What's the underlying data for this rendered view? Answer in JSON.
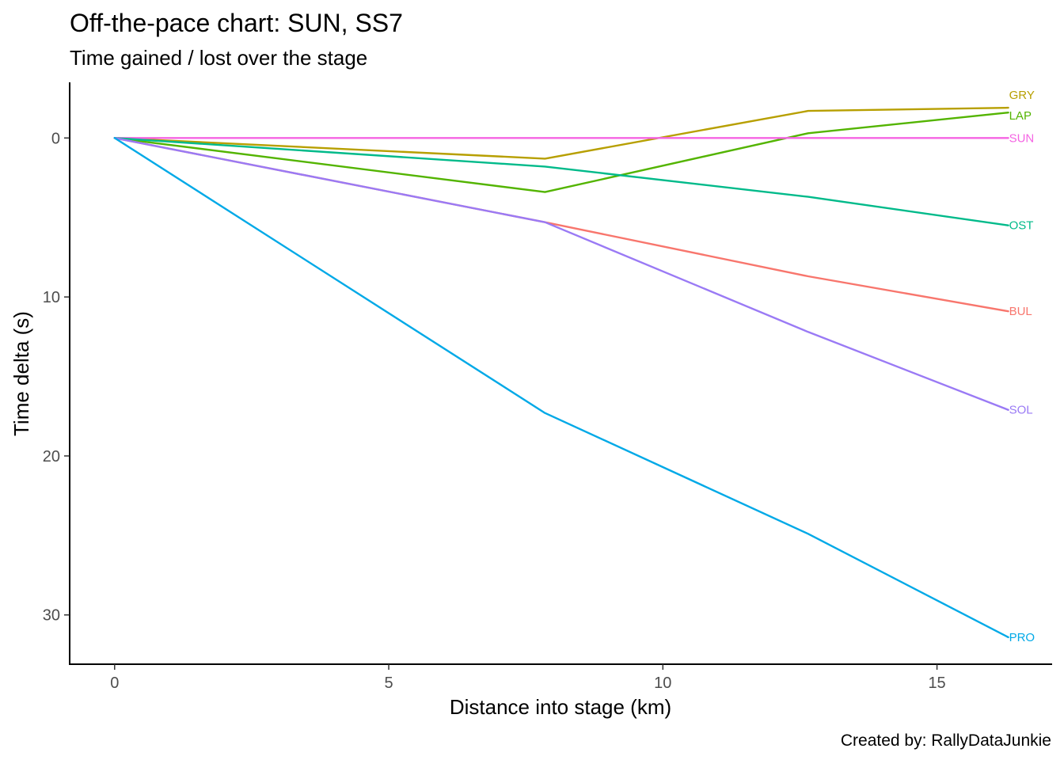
{
  "chart_data": {
    "type": "line",
    "title": "Off-the-pace chart: SUN, SS7",
    "subtitle": "Time gained / lost over the stage",
    "xlabel": "Distance into stage (km)",
    "ylabel": "Time delta (s)",
    "caption": "Created by: RallyDataJunkie",
    "xlim": [
      -0.82,
      17.1
    ],
    "ylim": [
      -3.5,
      33.1
    ],
    "y_reversed": true,
    "grid": false,
    "legend": "direct labels at line ends",
    "x_ticks": [
      0,
      5,
      10,
      15
    ],
    "y_ticks": [
      0,
      10,
      20,
      30
    ],
    "x": [
      0,
      7.85,
      12.65,
      16.3
    ],
    "series": [
      {
        "name": "GRY",
        "color": "#B79F00",
        "values": [
          0,
          1.3,
          -1.7,
          -1.9
        ]
      },
      {
        "name": "LAP",
        "color": "#53B400",
        "values": [
          0,
          3.4,
          -0.3,
          -1.6
        ]
      },
      {
        "name": "SUN",
        "color": "#F564E3",
        "values": [
          0,
          0,
          0,
          0
        ]
      },
      {
        "name": "OST",
        "color": "#00BA8A",
        "values": [
          0,
          1.8,
          3.7,
          5.5
        ]
      },
      {
        "name": "BUL",
        "color": "#F8766D",
        "values": [
          0,
          5.3,
          8.7,
          10.9
        ]
      },
      {
        "name": "SOL",
        "color": "#9A7AF5",
        "values": [
          0,
          5.3,
          12.2,
          17.1
        ]
      },
      {
        "name": "PRO",
        "color": "#00A9E7",
        "values": [
          0,
          17.3,
          24.9,
          31.4
        ]
      }
    ],
    "label_offsets": {
      "GRY": -0.8,
      "LAP": 0.2
    }
  }
}
